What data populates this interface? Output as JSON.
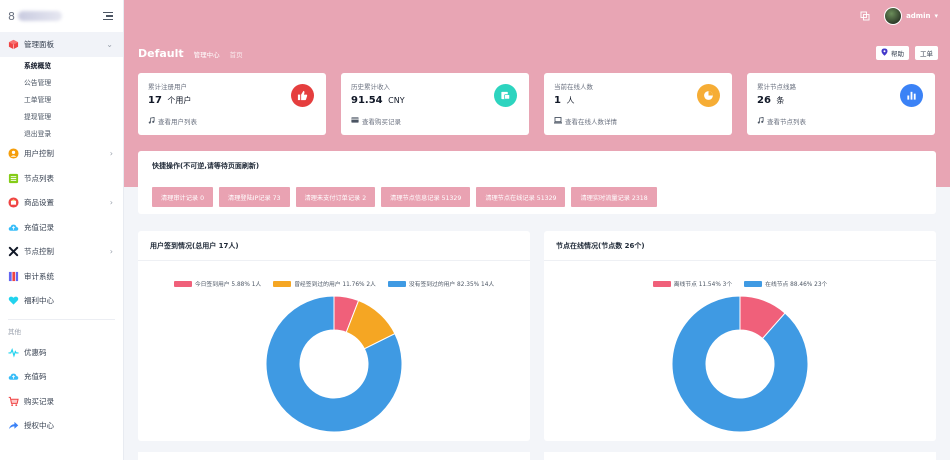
{
  "sidebar": {
    "menu": [
      {
        "label": "管理面板",
        "icon": "cube-icon",
        "color": "#ef4444",
        "expanded": true,
        "children": [
          "系统概览",
          "公告管理",
          "工单管理",
          "提现管理",
          "退出登录"
        ],
        "active_child": 0
      },
      {
        "label": "用户控制",
        "icon": "user-icon",
        "color": "#f59e0b",
        "expandable": true
      },
      {
        "label": "节点列表",
        "icon": "list-icon",
        "color": "#84cc16",
        "expandable": false
      },
      {
        "label": "商品设置",
        "icon": "shop-icon",
        "color": "#ef4444",
        "expandable": true
      },
      {
        "label": "充值记录",
        "icon": "cloud-icon",
        "color": "#38bdf8",
        "expandable": false
      },
      {
        "label": "节点控制",
        "icon": "tools-icon",
        "color": "#111827",
        "expandable": true
      },
      {
        "label": "审计系统",
        "icon": "server-icon",
        "color": "#6366f1",
        "expandable": false
      },
      {
        "label": "福利中心",
        "icon": "heart-icon",
        "color": "#22d3ee",
        "expandable": false
      }
    ],
    "section_label": "其他",
    "others": [
      {
        "label": "优惠码",
        "icon": "pulse-icon",
        "color": "#22d3ee"
      },
      {
        "label": "充值码",
        "icon": "cloud-icon",
        "color": "#38bdf8"
      },
      {
        "label": "购买记录",
        "icon": "cart-icon",
        "color": "#ef4444"
      },
      {
        "label": "授权中心",
        "icon": "share-icon",
        "color": "#3b82f6"
      }
    ]
  },
  "topbar": {
    "username": "admin"
  },
  "header": {
    "title": "Default",
    "breadcrumb": [
      "管理中心",
      "首页"
    ],
    "buttons": [
      {
        "label": "帮助",
        "icon": "pin-icon"
      },
      {
        "label": "工单"
      }
    ]
  },
  "stats": [
    {
      "label": "累计注册用户",
      "value": "17",
      "unit": "个用户",
      "link": "查看用户列表",
      "icon": "thumbs-up-icon",
      "color": "#e53e3e"
    },
    {
      "label": "历史累计收入",
      "value": "91.54",
      "unit": "CNY",
      "link": "查看购买记录",
      "icon": "money-icon",
      "color": "#2dd4bf"
    },
    {
      "label": "当前在线人数",
      "value": "1",
      "unit": "人",
      "link": "查看在线人数详情",
      "icon": "pie-icon",
      "color": "#f6ad35"
    },
    {
      "label": "累计节点线路",
      "value": "26",
      "unit": "条",
      "link": "查看节点列表",
      "icon": "bar-chart-icon",
      "color": "#3b82f6"
    }
  ],
  "quick": {
    "title": "快捷操作(不可逆,请等待页面刷新)",
    "buttons": [
      "清理审计记录 0",
      "清理登陆IP记录 73",
      "清理未支付订单记录 2",
      "清理节点信息记录 51329",
      "清理节点在线记录 51329",
      "清理实时流量记录 2318"
    ]
  },
  "charts": {
    "sign": {
      "title": "用户签到情况(总用户 17人)",
      "legend": [
        "今日签到用户 5.88% 1人",
        "曾经签到过的用户 11.76% 2人",
        "没有签到过的用户 82.35% 14人"
      ]
    },
    "node": {
      "title": "节点在线情况(节点数 26个)",
      "legend": [
        "离线节点 11.54% 3个",
        "在线节点 88.46% 23个"
      ]
    }
  },
  "chart_data": [
    {
      "type": "pie",
      "title": "用户签到情况(总用户 17人)",
      "labels": [
        "今日签到用户",
        "曾经签到过的用户",
        "没有签到过的用户"
      ],
      "values": [
        1,
        2,
        14
      ],
      "percent": [
        5.88,
        11.76,
        82.35
      ],
      "colors": [
        "#f0607a",
        "#f5a623",
        "#3f9ae3"
      ],
      "legend": "top"
    },
    {
      "type": "pie",
      "title": "节点在线情况(节点数 26个)",
      "labels": [
        "离线节点",
        "在线节点"
      ],
      "values": [
        3,
        23
      ],
      "percent": [
        11.54,
        88.46
      ],
      "colors": [
        "#f0607a",
        "#3f9ae3"
      ],
      "legend": "top"
    }
  ]
}
